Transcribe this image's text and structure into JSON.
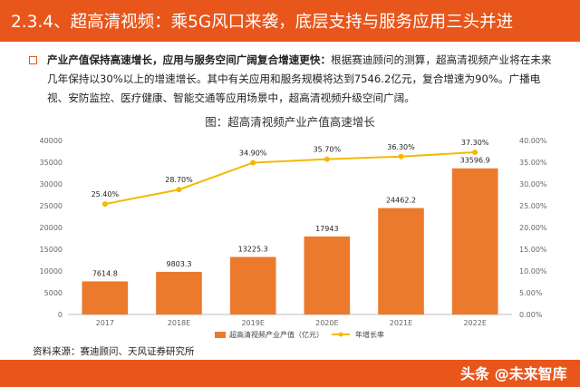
{
  "header": {
    "title": "2.3.4、超高清视频：乘5G风口来袭，底层支持与服务应用三头并进"
  },
  "intro": {
    "bold": "产业产值保持高速增长，应用与服务空间广阔复合增速更快：",
    "text": "根据赛迪顾问的测算，超高清视频产业将在未来几年保持以30%以上的增速增长。其中有关应用和服务规模将达到7546.2亿元，复合增速为90%。广播电视、安防监控、医疗健康、智能交通等应用场景中，超高清视频升级空间广阔。"
  },
  "chart_data": {
    "type": "bar",
    "title": "图：超高清视频产业产值高速增长",
    "categories": [
      "2017",
      "2018E",
      "2019E",
      "2020E",
      "2021E",
      "2022E"
    ],
    "series": [
      {
        "name": "超高清视频产业产值（亿元）",
        "type": "bar",
        "axis": "left",
        "values": [
          7614.8,
          9803.3,
          13225.3,
          17943,
          24462.2,
          33596.9
        ],
        "labels": [
          "7614.8",
          "9803.3",
          "13225.3",
          "17943",
          "24462.2",
          "33596.9"
        ],
        "color": "#ec7a2c"
      },
      {
        "name": "年增长率",
        "type": "line",
        "axis": "right",
        "values": [
          25.4,
          28.7,
          34.9,
          35.7,
          36.3,
          37.3
        ],
        "labels": [
          "25.40%",
          "28.70%",
          "34.90%",
          "35.70%",
          "36.30%",
          "37.30%"
        ],
        "color": "#f5b800"
      }
    ],
    "y_left": {
      "range": [
        0,
        40000
      ],
      "ticks": [
        "0",
        "5000",
        "10000",
        "15000",
        "20000",
        "25000",
        "30000",
        "35000",
        "40000"
      ]
    },
    "y_right": {
      "range": [
        0,
        40
      ],
      "ticks": [
        "0.00%",
        "5.00%",
        "10.00%",
        "15.00%",
        "20.00%",
        "25.00%",
        "30.00%",
        "35.00%",
        "40.00%"
      ]
    },
    "legend_position": "bottom",
    "grid": false
  },
  "source": "资料来源：赛迪顾问、天风证券研究所",
  "watermark": "头条 @未来智库",
  "colors": {
    "accent": "#e8561c",
    "bar": "#ec7a2c",
    "line": "#f5b800"
  }
}
